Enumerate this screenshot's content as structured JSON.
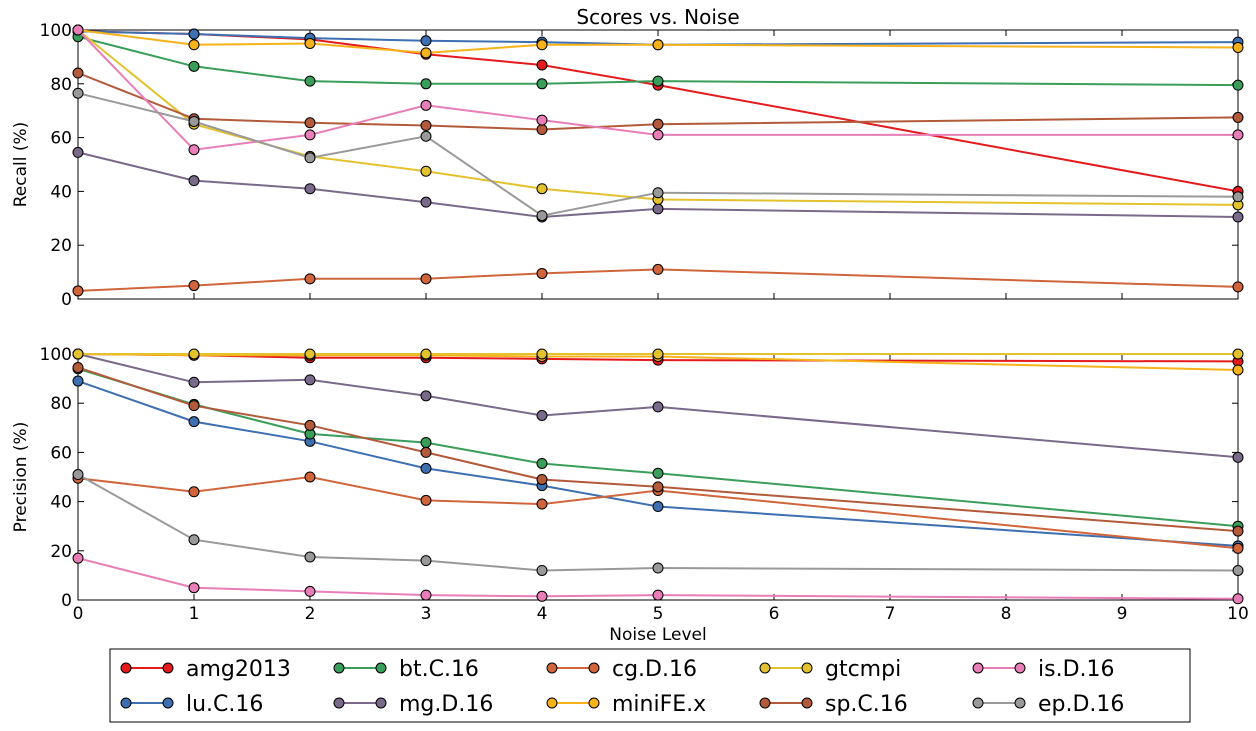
{
  "chart_data": [
    {
      "type": "line",
      "title": "Scores vs. Noise",
      "xlabel": "",
      "ylabel": "Recall (%)",
      "xlim": [
        0,
        10
      ],
      "ylim": [
        0,
        100
      ],
      "x_ticks": [
        "0",
        "1",
        "2",
        "3",
        "4",
        "5",
        "6",
        "7",
        "8",
        "9",
        "10"
      ],
      "y_ticks": [
        "0",
        "20",
        "40",
        "60",
        "80",
        "100"
      ],
      "x": [
        0,
        1,
        2,
        3,
        4,
        5,
        10
      ],
      "show_x_tick_labels": false,
      "grid": false,
      "series": [
        {
          "name": "amg2013",
          "color": "#e41a1c",
          "values": [
            99.5,
            98.5,
            96.5,
            91,
            87,
            79.5,
            40
          ]
        },
        {
          "name": "lu.C.16",
          "color": "#3e6fb0",
          "values": [
            99.5,
            98.5,
            97,
            96,
            95.5,
            94.5,
            95.5
          ]
        },
        {
          "name": "bt.C.16",
          "color": "#3a9e5a",
          "values": [
            97.5,
            86.5,
            81,
            80,
            80,
            81,
            79.5
          ]
        },
        {
          "name": "mg.D.16",
          "color": "#7a6a8a",
          "values": [
            54.5,
            44,
            41,
            36,
            30.5,
            33.5,
            30.5
          ]
        },
        {
          "name": "cg.D.16",
          "color": "#d0653c",
          "values": [
            3,
            5,
            7.5,
            7.5,
            9.5,
            11,
            4.5
          ]
        },
        {
          "name": "miniFE.x",
          "color": "#f6b21a",
          "values": [
            100,
            94.5,
            95,
            91.5,
            94.5,
            94.5,
            93.5
          ]
        },
        {
          "name": "gtcmpi",
          "color": "#e3c22e",
          "values": [
            100,
            65,
            53,
            47.5,
            41,
            37,
            35
          ]
        },
        {
          "name": "sp.C.16",
          "color": "#b35a3a",
          "values": [
            84,
            67,
            65.5,
            64.5,
            63,
            65,
            67.5
          ]
        },
        {
          "name": "is.D.16",
          "color": "#e87eb8",
          "values": [
            100,
            55.5,
            61,
            72,
            66.5,
            61,
            61
          ]
        },
        {
          "name": "ep.D.16",
          "color": "#999999",
          "values": [
            76.5,
            66,
            52.5,
            60.5,
            31,
            39.5,
            38
          ]
        }
      ]
    },
    {
      "type": "line",
      "title": "",
      "xlabel": "Noise Level",
      "ylabel": "Precision (%)",
      "xlim": [
        0,
        10
      ],
      "ylim": [
        0,
        100
      ],
      "x_ticks": [
        "0",
        "1",
        "2",
        "3",
        "4",
        "5",
        "6",
        "7",
        "8",
        "9",
        "10"
      ],
      "y_ticks": [
        "0",
        "20",
        "40",
        "60",
        "80",
        "100"
      ],
      "x": [
        0,
        1,
        2,
        3,
        4,
        5,
        10
      ],
      "show_x_tick_labels": true,
      "grid": false,
      "series": [
        {
          "name": "amg2013",
          "color": "#e41a1c",
          "values": [
            100,
            99.5,
            98.5,
            98.5,
            98,
            97.5,
            97
          ]
        },
        {
          "name": "lu.C.16",
          "color": "#3e6fb0",
          "values": [
            89,
            72.5,
            64.5,
            53.5,
            46.5,
            38,
            22
          ]
        },
        {
          "name": "bt.C.16",
          "color": "#3a9e5a",
          "values": [
            94,
            79.5,
            67.5,
            64,
            55.5,
            51.5,
            30
          ]
        },
        {
          "name": "mg.D.16",
          "color": "#7a6a8a",
          "values": [
            100,
            88.5,
            89.5,
            83,
            75,
            78.5,
            58
          ]
        },
        {
          "name": "cg.D.16",
          "color": "#d0653c",
          "values": [
            49.5,
            44,
            50,
            40.5,
            39,
            44.5,
            21
          ]
        },
        {
          "name": "miniFE.x",
          "color": "#f6b21a",
          "values": [
            100,
            99.5,
            99.5,
            99.5,
            99,
            99,
            93.5
          ]
        },
        {
          "name": "gtcmpi",
          "color": "#e3c22e",
          "values": [
            100,
            100,
            100,
            100,
            100,
            100,
            100
          ]
        },
        {
          "name": "sp.C.16",
          "color": "#b35a3a",
          "values": [
            94.5,
            79,
            71,
            60,
            49,
            46,
            28
          ]
        },
        {
          "name": "is.D.16",
          "color": "#e87eb8",
          "values": [
            17,
            5,
            3.5,
            2,
            1.5,
            2,
            0.5
          ]
        },
        {
          "name": "ep.D.16",
          "color": "#999999",
          "values": [
            51,
            24.5,
            17.5,
            16,
            12,
            13,
            12
          ]
        }
      ]
    }
  ],
  "legend": {
    "placement": "bottom",
    "entries": [
      {
        "name": "amg2013",
        "color": "#e41a1c"
      },
      {
        "name": "bt.C.16",
        "color": "#3a9e5a"
      },
      {
        "name": "cg.D.16",
        "color": "#d0653c"
      },
      {
        "name": "gtcmpi",
        "color": "#e3c22e"
      },
      {
        "name": "is.D.16",
        "color": "#e87eb8"
      },
      {
        "name": "lu.C.16",
        "color": "#3e6fb0"
      },
      {
        "name": "mg.D.16",
        "color": "#7a6a8a"
      },
      {
        "name": "miniFE.x",
        "color": "#f6b21a"
      },
      {
        "name": "sp.C.16",
        "color": "#b35a3a"
      },
      {
        "name": "ep.D.16",
        "color": "#999999"
      }
    ]
  }
}
